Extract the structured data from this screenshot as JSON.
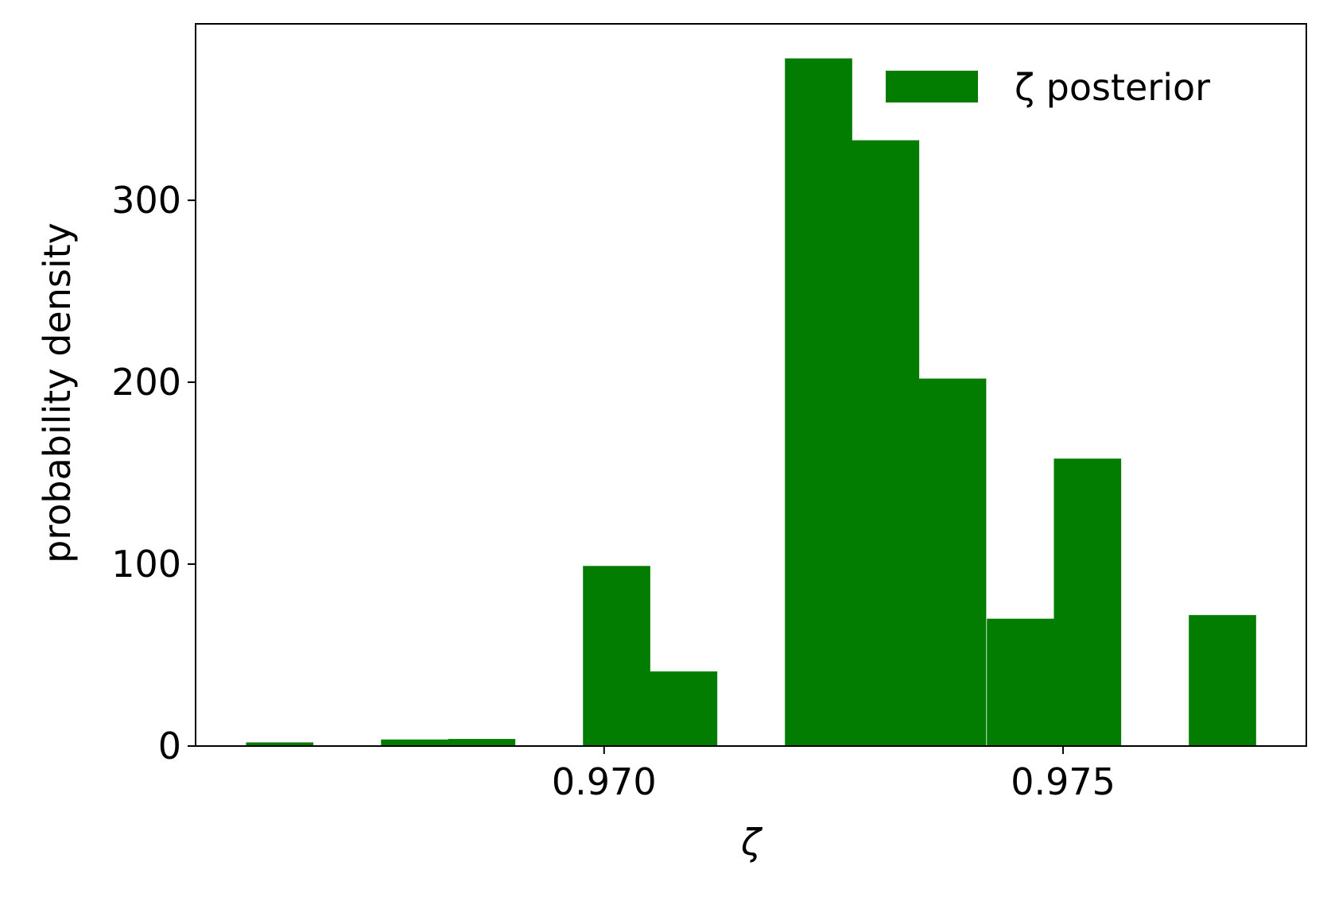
{
  "chart_data": {
    "type": "bar",
    "title": "",
    "xlabel": "ζ",
    "ylabel": "probability density",
    "legend": {
      "entries": [
        "ζ posterior"
      ],
      "placement": "top-right"
    },
    "colors": {
      "bars": "#027d02",
      "axes": "#000000",
      "background": "#ffffff"
    },
    "grid": false,
    "xlim": [
      0.96555,
      0.97765
    ],
    "ylim": [
      0,
      397
    ],
    "xticks": [
      0.97,
      0.975
    ],
    "xtick_labels": [
      "0.970",
      "0.975"
    ],
    "yticks": [
      0,
      100,
      200,
      300
    ],
    "ytick_labels": [
      "0",
      "100",
      "200",
      "300"
    ],
    "bin_width": 0.000733,
    "bin_starts": [
      0.9661,
      0.96683,
      0.96757,
      0.9683,
      0.96903,
      0.96977,
      0.9705,
      0.97123,
      0.97197,
      0.9727,
      0.97343,
      0.97417,
      0.9749,
      0.97563,
      0.97637
    ],
    "values": [
      2,
      0,
      3.6,
      3.9,
      0,
      99,
      41,
      0,
      378,
      333,
      202,
      70,
      158,
      0,
      72
    ]
  }
}
